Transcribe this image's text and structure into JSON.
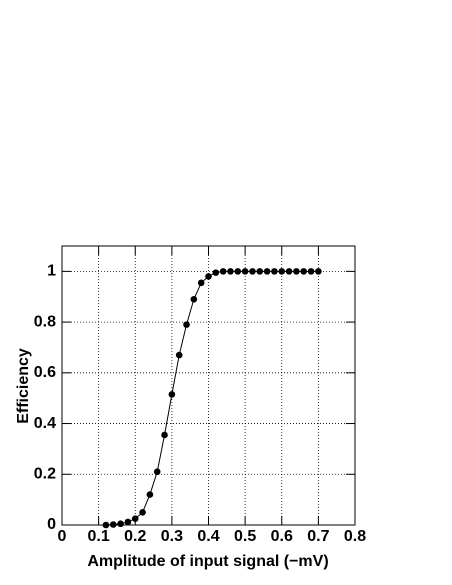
{
  "chart_data": {
    "type": "line",
    "x_label": "Amplitude of input signal (−mV)",
    "y_label": "Efficiency",
    "x": [
      0.12,
      0.14,
      0.16,
      0.18,
      0.2,
      0.22,
      0.24,
      0.26,
      0.28,
      0.3,
      0.32,
      0.34,
      0.36,
      0.38,
      0.4,
      0.42,
      0.44,
      0.46,
      0.48,
      0.5,
      0.52,
      0.54,
      0.56,
      0.58,
      0.6,
      0.62,
      0.64,
      0.66,
      0.68,
      0.7
    ],
    "series": [
      {
        "color": "#000000",
        "values": [
          0,
          0.002,
          0.005,
          0.012,
          0.025,
          0.05,
          0.12,
          0.21,
          0.355,
          0.515,
          0.67,
          0.79,
          0.89,
          0.955,
          0.98,
          0.995,
          1,
          1,
          1,
          1,
          1,
          1,
          1,
          1,
          1,
          1,
          1,
          1,
          1,
          1
        ]
      }
    ],
    "xlim": [
      0,
      0.8
    ],
    "xticks": [
      0,
      0.1,
      0.2,
      0.3,
      0.4,
      0.5,
      0.6,
      0.7,
      0.8
    ],
    "ylim": [
      0,
      1.1
    ],
    "yticks": [
      0,
      0.2,
      0.4,
      0.6,
      0.8,
      1
    ],
    "grid": true
  }
}
